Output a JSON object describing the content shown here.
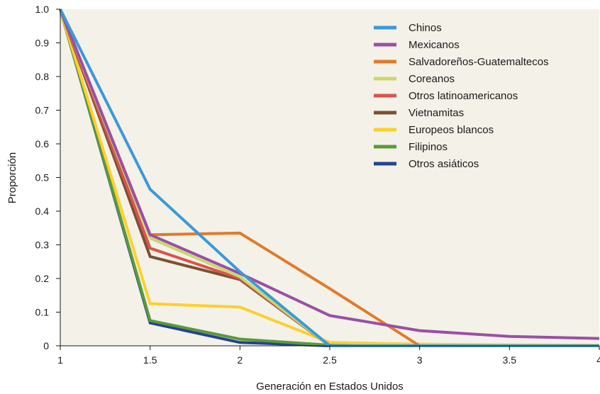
{
  "chart_data": {
    "type": "line",
    "title": "",
    "xlabel": "Generación en Estados Unidos",
    "ylabel": "Proporción",
    "xlim": [
      1,
      4
    ],
    "ylim": [
      0,
      1.0
    ],
    "x_ticks": [
      "1",
      "1.5",
      "2",
      "2.5",
      "3",
      "3.5",
      "4"
    ],
    "y_ticks": [
      "0",
      "0.1",
      "0.2",
      "0.3",
      "0.4",
      "0.5",
      "0.6",
      "0.7",
      "0.8",
      "0.9",
      "1.0"
    ],
    "grid": false,
    "legend_position": "top-right",
    "background": "#f4f1e8",
    "x": [
      1,
      1.5,
      2,
      2.5,
      3,
      3.5,
      4
    ],
    "series": [
      {
        "name": "Chinos",
        "color": "#3a9ad9",
        "values": [
          1.0,
          0.465,
          0.22,
          0.0,
          0.0,
          0.0,
          0.0
        ]
      },
      {
        "name": "Mexicanos",
        "color": "#9b4fa5",
        "values": [
          1.0,
          0.33,
          0.215,
          0.09,
          0.045,
          0.028,
          0.022
        ]
      },
      {
        "name": "Salvadoreños-Guatemaltecos",
        "color": "#e07b2a",
        "values": [
          1.0,
          0.33,
          0.335,
          0.17,
          0.0,
          null,
          null
        ]
      },
      {
        "name": "Coreanos",
        "color": "#c8d96a",
        "values": [
          1.0,
          0.32,
          0.205,
          0.0,
          null,
          null,
          null
        ]
      },
      {
        "name": "Otros latinoamericanos",
        "color": "#d9534f",
        "values": [
          1.0,
          0.29,
          0.2,
          0.0,
          null,
          null,
          null
        ]
      },
      {
        "name": "Vietnamitas",
        "color": "#7a5230",
        "values": [
          1.0,
          0.265,
          0.197,
          0.0,
          null,
          null,
          null
        ]
      },
      {
        "name": "Europeos blancos",
        "color": "#fcd12a",
        "values": [
          1.0,
          0.125,
          0.115,
          0.01,
          0.005,
          0.003,
          0.002
        ]
      },
      {
        "name": "Filipinos",
        "color": "#5a9a3a",
        "values": [
          1.0,
          0.075,
          0.02,
          0.002,
          0.0,
          null,
          null
        ]
      },
      {
        "name": "Otros asiáticos",
        "color": "#24438f",
        "values": [
          1.0,
          0.068,
          0.01,
          0.0,
          null,
          null,
          null
        ]
      }
    ]
  }
}
